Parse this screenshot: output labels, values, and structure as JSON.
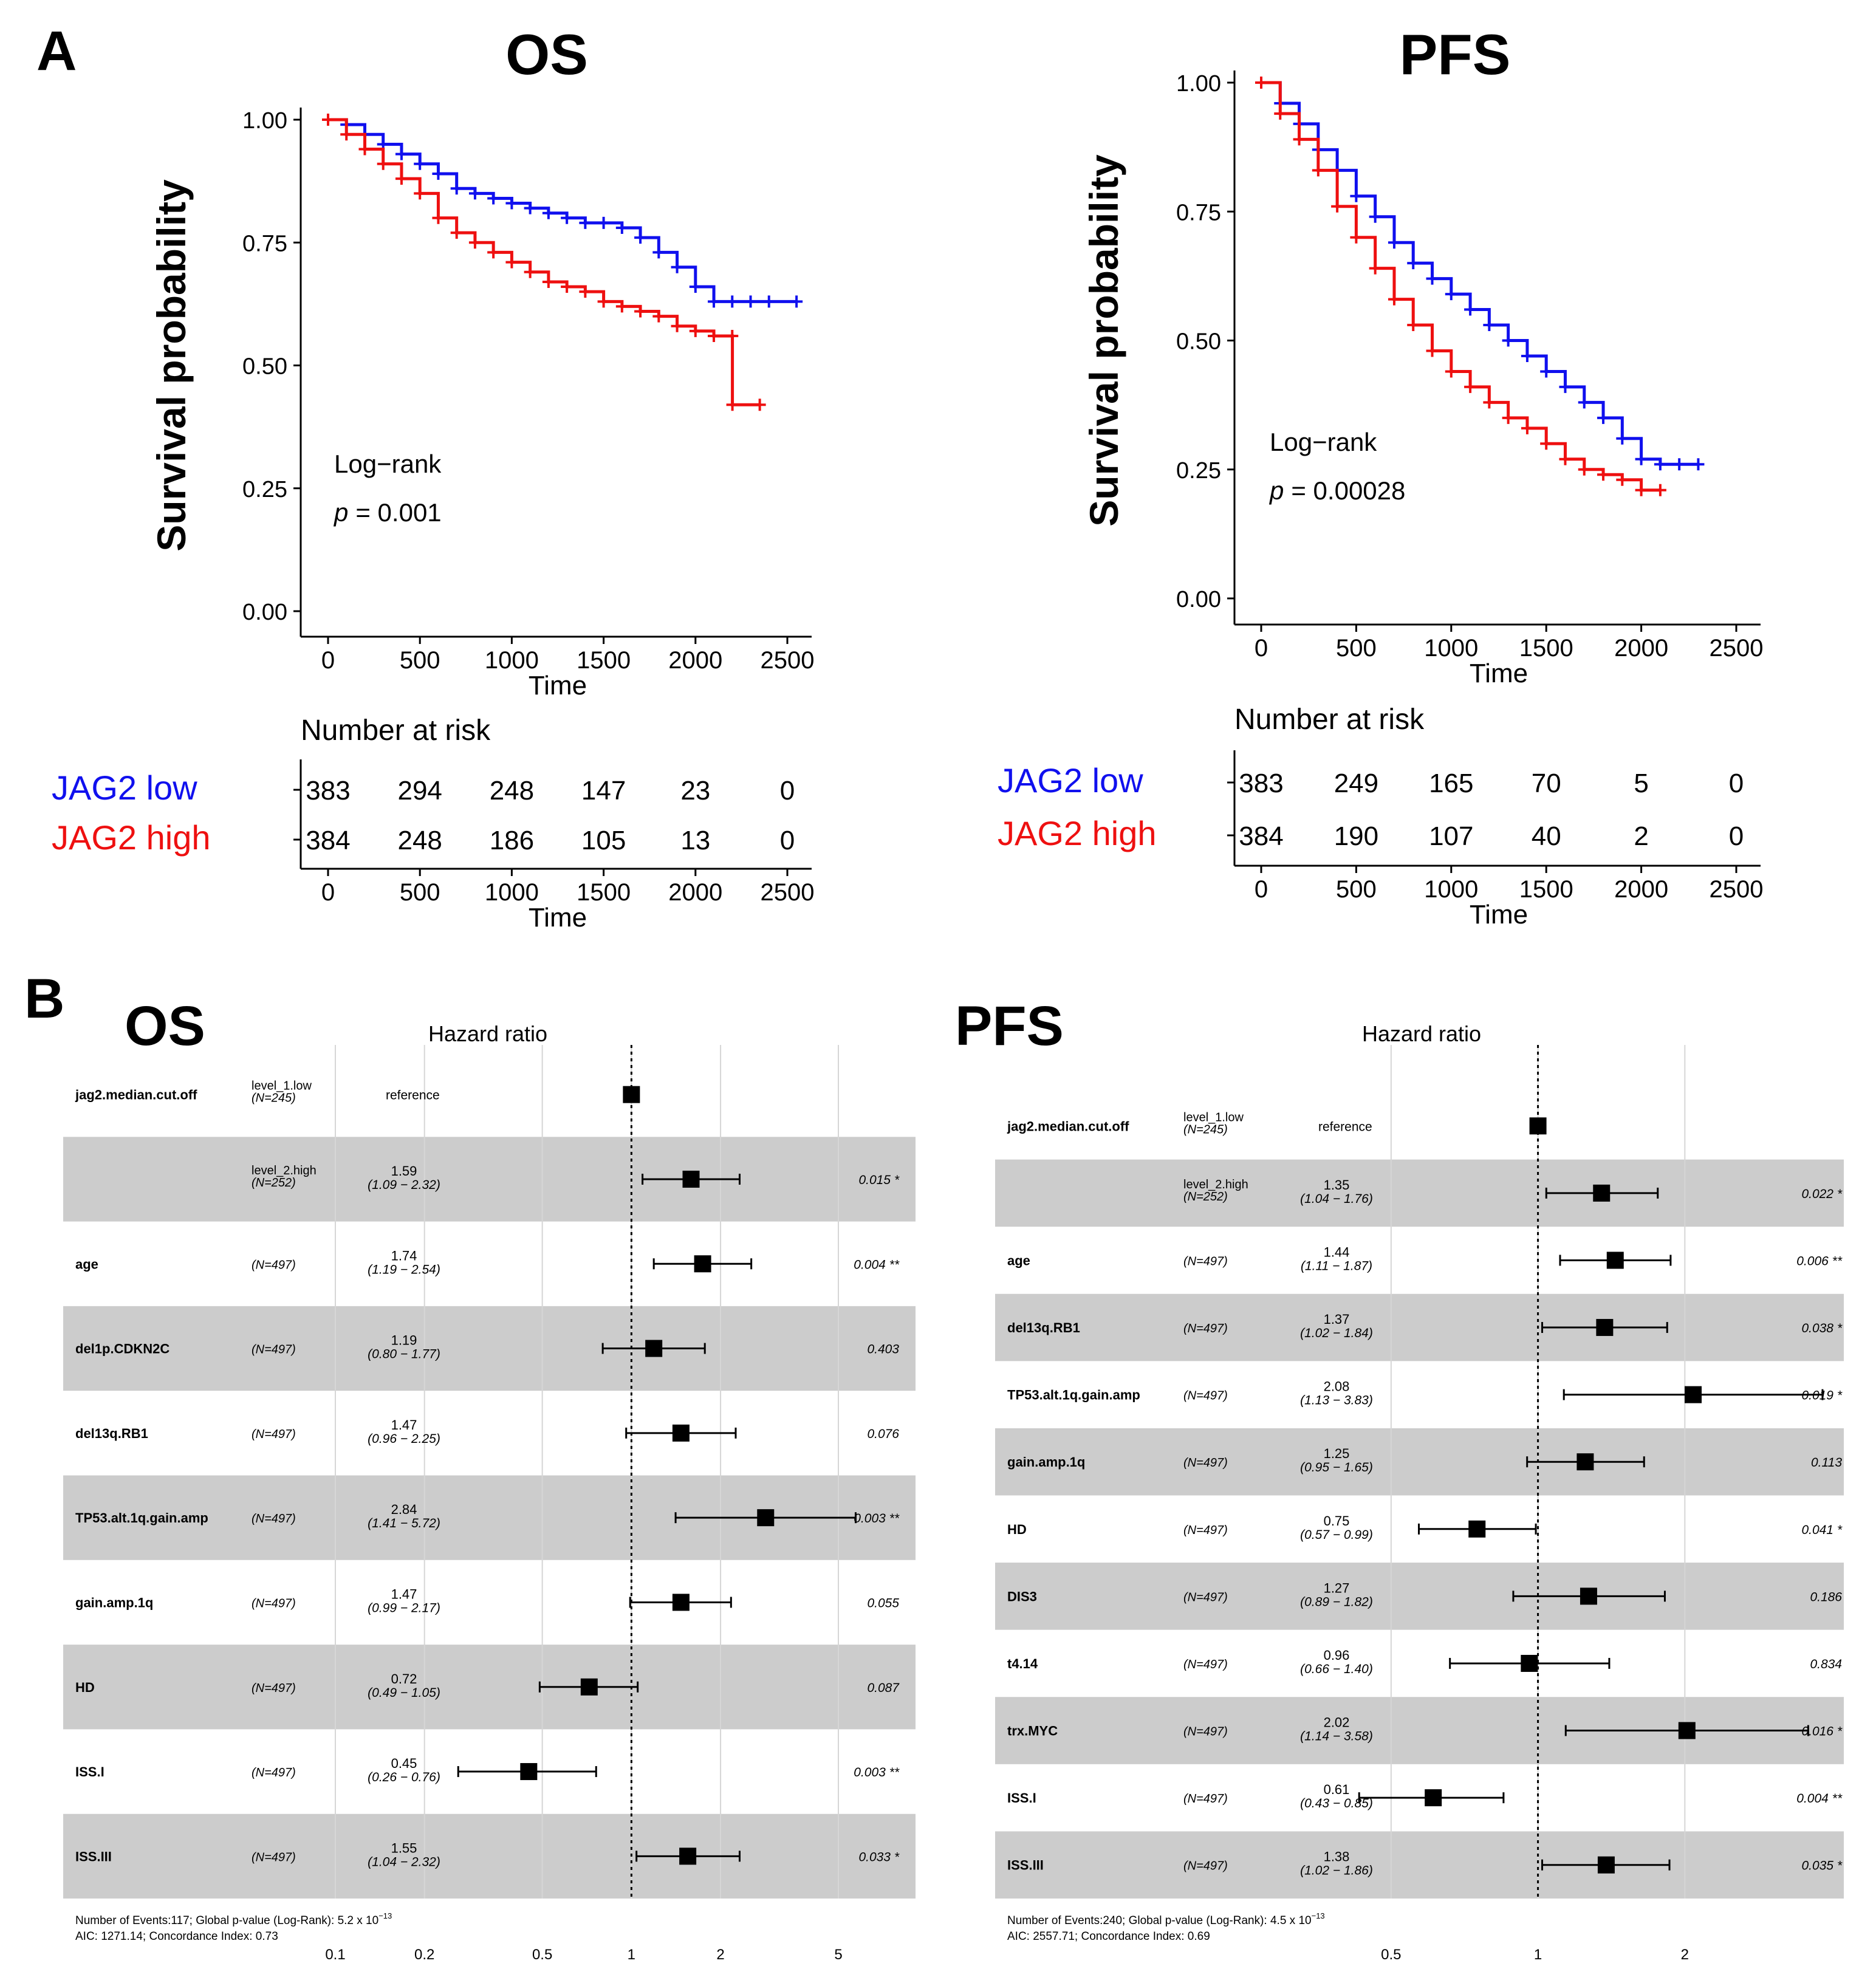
{
  "panel_labels": {
    "a": "A",
    "b": "B"
  },
  "colors": {
    "low": "#1010ee",
    "high": "#ee1010",
    "band": "#cccccc",
    "grid": "#d6d6d6",
    "ink": "#000000"
  },
  "chart_data": [
    {
      "id": "km_os",
      "type": "line",
      "title": "OS",
      "xlabel": "Time",
      "ylabel": "Survival probability",
      "xlim": [
        0,
        2500
      ],
      "ylim": [
        0,
        1
      ],
      "xticks": [
        "0",
        "500",
        "1000",
        "1500",
        "2000",
        "2500"
      ],
      "xtick_values": [
        0,
        500,
        1000,
        1500,
        2000,
        2500
      ],
      "yticks": [
        "0.00",
        "0.25",
        "0.50",
        "0.75",
        "1.00"
      ],
      "ytick_values": [
        0,
        0.25,
        0.5,
        0.75,
        1
      ],
      "annotation": {
        "test": "Log−rank",
        "p_label": "p",
        "p_value": "= 0.001"
      },
      "series": [
        {
          "name": "JAG2 low",
          "color": "#1010ee",
          "x": [
            0,
            100,
            200,
            300,
            400,
            500,
            600,
            700,
            800,
            900,
            1000,
            1100,
            1200,
            1300,
            1400,
            1500,
            1600,
            1700,
            1800,
            1900,
            2000,
            2100,
            2200,
            2300,
            2400,
            2550
          ],
          "y": [
            1.0,
            0.99,
            0.97,
            0.95,
            0.93,
            0.91,
            0.89,
            0.86,
            0.85,
            0.84,
            0.83,
            0.82,
            0.81,
            0.8,
            0.79,
            0.79,
            0.78,
            0.76,
            0.73,
            0.7,
            0.66,
            0.63,
            0.63,
            0.63,
            0.63,
            0.63
          ]
        },
        {
          "name": "JAG2 high",
          "color": "#ee1010",
          "x": [
            0,
            100,
            200,
            300,
            400,
            500,
            600,
            700,
            800,
            900,
            1000,
            1100,
            1200,
            1300,
            1400,
            1500,
            1600,
            1700,
            1800,
            1900,
            2000,
            2100,
            2200,
            2201,
            2350
          ],
          "y": [
            1.0,
            0.97,
            0.94,
            0.91,
            0.88,
            0.85,
            0.8,
            0.77,
            0.75,
            0.73,
            0.71,
            0.69,
            0.67,
            0.66,
            0.65,
            0.63,
            0.62,
            0.61,
            0.6,
            0.58,
            0.57,
            0.56,
            0.56,
            0.42,
            0.42
          ]
        }
      ],
      "risk_table": {
        "title": "Number at risk",
        "xlabel": "Time",
        "rows": [
          {
            "label": "JAG2 low",
            "color": "#1010ee",
            "values": [
              "383",
              "294",
              "248",
              "147",
              "23",
              "0"
            ]
          },
          {
            "label": "JAG2 high",
            "color": "#ee1010",
            "values": [
              "384",
              "248",
              "186",
              "105",
              "13",
              "0"
            ]
          }
        ]
      }
    },
    {
      "id": "km_pfs",
      "type": "line",
      "title": "PFS",
      "xlabel": "Time",
      "ylabel": "Survival probability",
      "xlim": [
        0,
        2500
      ],
      "ylim": [
        0,
        1
      ],
      "xticks": [
        "0",
        "500",
        "1000",
        "1500",
        "2000",
        "2500"
      ],
      "xtick_values": [
        0,
        500,
        1000,
        1500,
        2000,
        2500
      ],
      "yticks": [
        "0.00",
        "0.25",
        "0.50",
        "0.75",
        "1.00"
      ],
      "ytick_values": [
        0,
        0.25,
        0.5,
        0.75,
        1
      ],
      "annotation": {
        "test": "Log−rank",
        "p_label": "p",
        "p_value": "= 0.00028"
      },
      "series": [
        {
          "name": "JAG2 low",
          "color": "#1010ee",
          "x": [
            0,
            100,
            200,
            300,
            400,
            500,
            600,
            700,
            800,
            900,
            1000,
            1100,
            1200,
            1300,
            1400,
            1500,
            1600,
            1700,
            1800,
            1900,
            2000,
            2100,
            2200,
            2300
          ],
          "y": [
            1.0,
            0.96,
            0.92,
            0.87,
            0.83,
            0.78,
            0.74,
            0.69,
            0.65,
            0.62,
            0.59,
            0.56,
            0.53,
            0.5,
            0.47,
            0.44,
            0.41,
            0.38,
            0.35,
            0.31,
            0.27,
            0.26,
            0.26,
            0.26
          ]
        },
        {
          "name": "JAG2 high",
          "color": "#ee1010",
          "x": [
            0,
            100,
            200,
            300,
            400,
            500,
            600,
            700,
            800,
            900,
            1000,
            1100,
            1200,
            1300,
            1400,
            1500,
            1600,
            1700,
            1800,
            1900,
            2000,
            2100
          ],
          "y": [
            1.0,
            0.94,
            0.89,
            0.83,
            0.76,
            0.7,
            0.64,
            0.58,
            0.53,
            0.48,
            0.44,
            0.41,
            0.38,
            0.35,
            0.33,
            0.3,
            0.27,
            0.25,
            0.24,
            0.23,
            0.21,
            0.21
          ]
        }
      ],
      "risk_table": {
        "title": "Number at risk",
        "xlabel": "Time",
        "rows": [
          {
            "label": "JAG2 low",
            "color": "#1010ee",
            "values": [
              "383",
              "249",
              "165",
              "70",
              "5",
              "0"
            ]
          },
          {
            "label": "JAG2 high",
            "color": "#ee1010",
            "values": [
              "384",
              "190",
              "107",
              "40",
              "2",
              "0"
            ]
          }
        ]
      }
    },
    {
      "id": "forest_os",
      "type": "scatter",
      "title": "OS",
      "xlabel": "Hazard ratio",
      "scale": "log",
      "xlim": [
        0.1,
        5
      ],
      "xticks": [
        "0.1",
        "0.2",
        "0.5",
        "1",
        "2",
        "5"
      ],
      "xtick_values": [
        0.1,
        0.2,
        0.5,
        1,
        2,
        5
      ],
      "rows": [
        {
          "variable": "jag2.median.cut.off",
          "level": "level_1.low",
          "n": "(N=245)",
          "hr_text": "reference",
          "ci_text": "",
          "p": "",
          "hr": 1,
          "lo": 1,
          "hi": 1,
          "ref": true
        },
        {
          "variable": "",
          "level": "level_2.high",
          "n": "(N=252)",
          "hr_text": "1.59",
          "ci_text": "(1.09 − 2.32)",
          "p": "0.015 *",
          "hr": 1.59,
          "lo": 1.09,
          "hi": 2.32,
          "ref": false
        },
        {
          "variable": "age",
          "level": "",
          "n": "(N=497)",
          "hr_text": "1.74",
          "ci_text": "(1.19 − 2.54)",
          "p": "0.004 **",
          "hr": 1.74,
          "lo": 1.19,
          "hi": 2.54,
          "ref": false
        },
        {
          "variable": "del1p.CDKN2C",
          "level": "",
          "n": "(N=497)",
          "hr_text": "1.19",
          "ci_text": "(0.80 − 1.77)",
          "p": "0.403",
          "hr": 1.19,
          "lo": 0.8,
          "hi": 1.77,
          "ref": false
        },
        {
          "variable": "del13q.RB1",
          "level": "",
          "n": "(N=497)",
          "hr_text": "1.47",
          "ci_text": "(0.96 − 2.25)",
          "p": "0.076",
          "hr": 1.47,
          "lo": 0.96,
          "hi": 2.25,
          "ref": false
        },
        {
          "variable": "TP53.alt.1q.gain.amp",
          "level": "",
          "n": "(N=497)",
          "hr_text": "2.84",
          "ci_text": "(1.41 − 5.72)",
          "p": "0.003 **",
          "hr": 2.84,
          "lo": 1.41,
          "hi": 5.72,
          "ref": false
        },
        {
          "variable": "gain.amp.1q",
          "level": "",
          "n": "(N=497)",
          "hr_text": "1.47",
          "ci_text": "(0.99 − 2.17)",
          "p": "0.055",
          "hr": 1.47,
          "lo": 0.99,
          "hi": 2.17,
          "ref": false
        },
        {
          "variable": "HD",
          "level": "",
          "n": "(N=497)",
          "hr_text": "0.72",
          "ci_text": "(0.49 − 1.05)",
          "p": "0.087",
          "hr": 0.72,
          "lo": 0.49,
          "hi": 1.05,
          "ref": false
        },
        {
          "variable": "ISS.I",
          "level": "",
          "n": "(N=497)",
          "hr_text": "0.45",
          "ci_text": "(0.26 − 0.76)",
          "p": "0.003 **",
          "hr": 0.45,
          "lo": 0.26,
          "hi": 0.76,
          "ref": false
        },
        {
          "variable": "ISS.III",
          "level": "",
          "n": "(N=497)",
          "hr_text": "1.55",
          "ci_text": "(1.04 − 2.32)",
          "p": "0.033 *",
          "hr": 1.55,
          "lo": 1.04,
          "hi": 2.32,
          "ref": false
        }
      ],
      "footer": {
        "line1": "Number of Events:117;  Global p-value (Log-Rank):  5.2 x 10",
        "exponent": "−13",
        "line2": "AIC:  1271.14;   Concordance  Index:  0.73"
      }
    },
    {
      "id": "forest_pfs",
      "type": "scatter",
      "title": "PFS",
      "xlabel": "Hazard ratio",
      "scale": "log",
      "xlim": [
        0.4,
        3.3
      ],
      "xticks": [
        "0.5",
        "1",
        "2"
      ],
      "xtick_values": [
        0.5,
        1,
        2
      ],
      "rows": [
        {
          "variable": "jag2.median.cut.off",
          "level": "level_1.low",
          "n": "(N=245)",
          "hr_text": "reference",
          "ci_text": "",
          "p": "",
          "hr": 1,
          "lo": 1,
          "hi": 1,
          "ref": true
        },
        {
          "variable": "",
          "level": "level_2.high",
          "n": "(N=252)",
          "hr_text": "1.35",
          "ci_text": "(1.04 − 1.76)",
          "p": "0.022 *",
          "hr": 1.35,
          "lo": 1.04,
          "hi": 1.76,
          "ref": false
        },
        {
          "variable": "age",
          "level": "",
          "n": "(N=497)",
          "hr_text": "1.44",
          "ci_text": "(1.11 − 1.87)",
          "p": "0.006 **",
          "hr": 1.44,
          "lo": 1.11,
          "hi": 1.87,
          "ref": false
        },
        {
          "variable": "del13q.RB1",
          "level": "",
          "n": "(N=497)",
          "hr_text": "1.37",
          "ci_text": "(1.02 − 1.84)",
          "p": "0.038 *",
          "hr": 1.37,
          "lo": 1.02,
          "hi": 1.84,
          "ref": false
        },
        {
          "variable": "TP53.alt.1q.gain.amp",
          "level": "",
          "n": "(N=497)",
          "hr_text": "2.08",
          "ci_text": "(1.13 − 3.83)",
          "p": "0.019 *",
          "hr": 2.08,
          "lo": 1.13,
          "hi": 3.83,
          "ref": false
        },
        {
          "variable": "gain.amp.1q",
          "level": "",
          "n": "(N=497)",
          "hr_text": "1.25",
          "ci_text": "(0.95 − 1.65)",
          "p": "0.113",
          "hr": 1.25,
          "lo": 0.95,
          "hi": 1.65,
          "ref": false
        },
        {
          "variable": "HD",
          "level": "",
          "n": "(N=497)",
          "hr_text": "0.75",
          "ci_text": "(0.57 − 0.99)",
          "p": "0.041 *",
          "hr": 0.75,
          "lo": 0.57,
          "hi": 0.99,
          "ref": false
        },
        {
          "variable": "DIS3",
          "level": "",
          "n": "(N=497)",
          "hr_text": "1.27",
          "ci_text": "(0.89 − 1.82)",
          "p": "0.186",
          "hr": 1.27,
          "lo": 0.89,
          "hi": 1.82,
          "ref": false
        },
        {
          "variable": "t4.14",
          "level": "",
          "n": "(N=497)",
          "hr_text": "0.96",
          "ci_text": "(0.66 − 1.40)",
          "p": "0.834",
          "hr": 0.96,
          "lo": 0.66,
          "hi": 1.4,
          "ref": false
        },
        {
          "variable": "trx.MYC",
          "level": "",
          "n": "(N=497)",
          "hr_text": "2.02",
          "ci_text": "(1.14 − 3.58)",
          "p": "0.016 *",
          "hr": 2.02,
          "lo": 1.14,
          "hi": 3.58,
          "ref": false
        },
        {
          "variable": "ISS.I",
          "level": "",
          "n": "(N=497)",
          "hr_text": "0.61",
          "ci_text": "(0.43 − 0.85)",
          "p": "0.004 **",
          "hr": 0.61,
          "lo": 0.43,
          "hi": 0.85,
          "ref": false
        },
        {
          "variable": "ISS.III",
          "level": "",
          "n": "(N=497)",
          "hr_text": "1.38",
          "ci_text": "(1.02 − 1.86)",
          "p": "0.035 *",
          "hr": 1.38,
          "lo": 1.02,
          "hi": 1.86,
          "ref": false
        }
      ],
      "footer": {
        "line1": "Number of Events:240;  Global p-value (Log-Rank):  4.5 x 10",
        "exponent": "−13",
        "line2": "AIC:  2557.71;   Concordance  Index:  0.69"
      }
    }
  ]
}
